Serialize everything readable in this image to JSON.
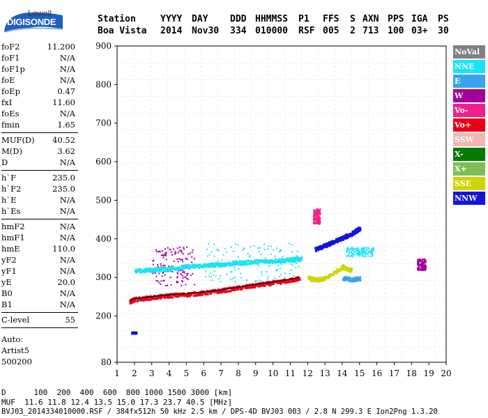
{
  "logo": {
    "top": "Lowell",
    "bottom": "DIGISONDE"
  },
  "header": {
    "cols": [
      {
        "label": "Station",
        "value": "Boa Vista"
      },
      {
        "label": "YYYY",
        "value": "2014"
      },
      {
        "label": "DAY",
        "value": "Nov30"
      },
      {
        "label": "DDD",
        "value": "334"
      },
      {
        "label": "HHMMSS",
        "value": "010000"
      },
      {
        "label": "P1",
        "value": "RSF"
      },
      {
        "label": "FFS",
        "value": "005"
      },
      {
        "label": "S",
        "value": "2"
      },
      {
        "label": "AXN",
        "value": "713"
      },
      {
        "label": "PPS",
        "value": "100"
      },
      {
        "label": "IGA",
        "value": "03+"
      },
      {
        "label": "PS",
        "value": "30"
      }
    ]
  },
  "params": {
    "group1": [
      {
        "k": "foF2",
        "v": "11.200"
      },
      {
        "k": "foF1",
        "v": "N/A"
      },
      {
        "k": "foF1p",
        "v": "N/A"
      },
      {
        "k": "foE",
        "v": "N/A"
      },
      {
        "k": "foEp",
        "v": "0.47"
      },
      {
        "k": "fxI",
        "v": "11.60"
      },
      {
        "k": "foEs",
        "v": "N/A"
      },
      {
        "k": "fmin",
        "v": "1.65"
      }
    ],
    "group2": [
      {
        "k": "MUF(D)",
        "v": "40.52"
      },
      {
        "k": "M(D)",
        "v": "3.62"
      },
      {
        "k": "D",
        "v": "N/A"
      }
    ],
    "group3": [
      {
        "k": "h`F",
        "v": "235.0"
      },
      {
        "k": "h`F2",
        "v": "235.0"
      },
      {
        "k": "h`E",
        "v": "N/A"
      },
      {
        "k": "h`Es",
        "v": "N/A"
      }
    ],
    "group4": [
      {
        "k": "hmF2",
        "v": "N/A"
      },
      {
        "k": "hmF1",
        "v": "N/A"
      },
      {
        "k": "hmE",
        "v": "110.0"
      },
      {
        "k": "yF2",
        "v": "N/A"
      },
      {
        "k": "yF1",
        "v": "N/A"
      },
      {
        "k": "yE",
        "v": "20.0"
      },
      {
        "k": "B0",
        "v": "N/A"
      },
      {
        "k": "B1",
        "v": "N/A"
      }
    ],
    "group5": [
      {
        "k": "C-level",
        "v": "55"
      }
    ],
    "auto": [
      "Auto:",
      "Artist5",
      "500200"
    ]
  },
  "legend": [
    {
      "label": "NoVal",
      "color": "#808080"
    },
    {
      "label": "NNE",
      "color": "#19e3f5"
    },
    {
      "label": "E",
      "color": "#3aa3f0"
    },
    {
      "label": "W",
      "color": "#a4009c"
    },
    {
      "label": "Vo-",
      "color": "#f0208c"
    },
    {
      "label": "Vo+",
      "color": "#e80018"
    },
    {
      "label": "SSW",
      "color": "#f4b6b0"
    },
    {
      "label": "X-",
      "color": "#007a00"
    },
    {
      "label": "X+",
      "color": "#7fbe57"
    },
    {
      "label": "SSE",
      "color": "#d0d400"
    },
    {
      "label": "NNW",
      "color": "#1414dc"
    }
  ],
  "chart_data": {
    "type": "scatter",
    "xlim": [
      1,
      20
    ],
    "ylim": [
      80,
      900
    ],
    "xticks": [
      "1",
      "2",
      "3",
      "4",
      "5",
      "6",
      "7",
      "8",
      "9",
      "10",
      "11",
      "12",
      "13",
      "14",
      "15",
      "16",
      "17",
      "18",
      "19",
      "20"
    ],
    "yticks": [
      "80",
      "200",
      "300",
      "400",
      "500",
      "600",
      "700",
      "800",
      "900"
    ],
    "yticks_values": [
      80,
      200,
      300,
      400,
      500,
      600,
      700,
      800,
      900
    ],
    "grid": true,
    "trace_series": [
      {
        "name": "NNE",
        "color": "#19e3f5",
        "x": [
          2.0,
          3,
          4,
          5,
          6,
          7,
          8,
          9,
          10,
          11,
          11.6
        ],
        "y": [
          318,
          322,
          325,
          330,
          333,
          336,
          340,
          343,
          345,
          348,
          350
        ]
      },
      {
        "name": "Vo+",
        "color": "#e80018",
        "x": [
          1.7,
          2,
          3,
          4,
          5,
          6,
          7,
          8,
          9,
          10,
          11,
          11.5
        ],
        "y": [
          240,
          245,
          250,
          255,
          258,
          262,
          268,
          275,
          282,
          288,
          295,
          300
        ]
      },
      {
        "name": "NNW",
        "color": "#1414dc",
        "x": [
          12.4,
          13,
          13.5,
          14,
          14.5,
          15
        ],
        "y": [
          375,
          385,
          395,
          405,
          415,
          430
        ]
      },
      {
        "name": "SSE",
        "color": "#d0d400",
        "x": [
          12,
          12.5,
          13,
          14,
          14.5
        ],
        "y": [
          300,
          295,
          300,
          330,
          320
        ]
      },
      {
        "name": "E",
        "color": "#3aa3f0",
        "x": [
          14,
          14.5,
          15
        ],
        "y": [
          300,
          296,
          300
        ]
      }
    ],
    "scatter_clusters": [
      {
        "name": "W",
        "color": "#a4009c",
        "x": [
          3,
          5.5
        ],
        "y": [
          280,
          380
        ]
      },
      {
        "name": "NNE",
        "color": "#19e3f5",
        "x": [
          6,
          11.5
        ],
        "y": [
          290,
          390
        ]
      },
      {
        "name": "Vo-",
        "color": "#f0208c",
        "x": [
          12.3,
          12.7
        ],
        "y": [
          440,
          480
        ]
      },
      {
        "name": "NNE",
        "color": "#19e3f5",
        "x": [
          14.2,
          15.8
        ],
        "y": [
          355,
          380
        ]
      },
      {
        "name": "W",
        "color": "#a4009c",
        "x": [
          18.3,
          18.8
        ],
        "y": [
          320,
          350
        ]
      },
      {
        "name": "NNW",
        "color": "#1414dc",
        "x": [
          1.8,
          2.1
        ],
        "y": [
          155,
          160
        ]
      }
    ]
  },
  "footer": {
    "line1": "D      100  200  400  600  800 1000 1500 3000 [km]",
    "line2": "MUF  11.6 11.8 12.4 13.5 15.0 17.3 23.7 40.5 [MHz]",
    "line3": "BVJ03_2014334010000.RSF / 384fx512h 50 kHz 2.5 km / DPS-4D BVJ03 003 / 2.8 N 299.3 E Ion2Png 1.3.20"
  }
}
